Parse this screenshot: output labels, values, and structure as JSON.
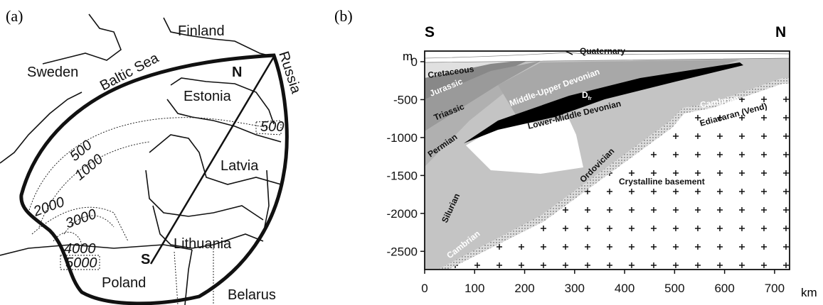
{
  "panel_a": {
    "label": "(a)",
    "places": [
      "Finland",
      "Baltic Sea",
      "Sweden",
      "Russia",
      "N",
      "Estonia",
      "Latvia",
      "Lithuania",
      "S",
      "Poland",
      "Belarus"
    ],
    "contours": [
      500,
      1000,
      2000,
      3000,
      4000,
      5000,
      500
    ]
  },
  "panel_b": {
    "label": "(b)",
    "ends": [
      "S",
      "N"
    ],
    "y_unit": "m",
    "x_unit": "km",
    "xlim": [
      0,
      730
    ],
    "ylim": [
      -2740,
      140
    ],
    "xticks": [
      0,
      100,
      200,
      300,
      400,
      500,
      600,
      700
    ],
    "yticks": [
      0,
      -500,
      -1000,
      -1500,
      -2000,
      -2500
    ],
    "layers": [
      "Quaternary",
      "Cretaceous",
      "Jurassic",
      "Triassic",
      "Middle-Upper Devonian",
      "Lower-Middle Devonian",
      "Permian",
      "Ordovician",
      "Silurian",
      "Crystalline basement",
      "Cambrian",
      "Cambrian",
      "Ediacaran (Vend)"
    ],
    "frasnian": {
      "main": "D",
      "sub": "fr"
    }
  }
}
